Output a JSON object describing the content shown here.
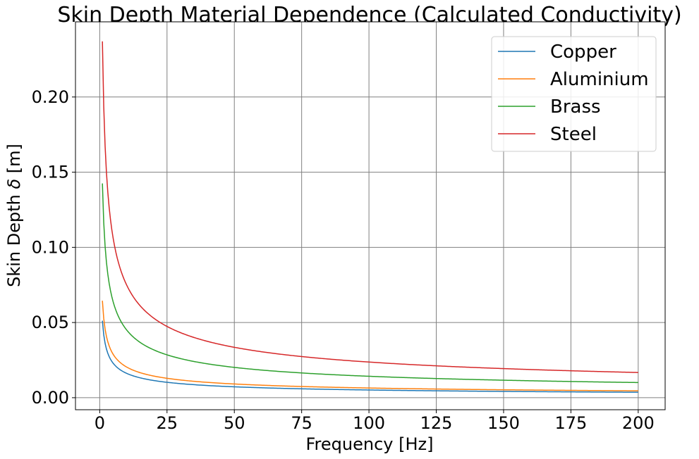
{
  "chart_data": {
    "type": "line",
    "title": "Skin Depth Material Dependence (Calculated Conductivity)",
    "xlabel": "Frequency [Hz]",
    "ylabel_prefix": "Skin Depth ",
    "ylabel_symbol": "δ",
    "ylabel_suffix": " [m]",
    "xlim": [
      -9,
      210
    ],
    "ylim": [
      -0.008,
      0.25
    ],
    "xticks": [
      0,
      25,
      50,
      75,
      100,
      125,
      150,
      175,
      200
    ],
    "xtick_labels": [
      "0",
      "25",
      "50",
      "75",
      "100",
      "125",
      "150",
      "175",
      "200"
    ],
    "yticks": [
      0.0,
      0.05,
      0.1,
      0.15,
      0.2
    ],
    "ytick_labels": [
      "0.00",
      "0.05",
      "0.10",
      "0.15",
      "0.20"
    ],
    "grid": true,
    "legend_position": "top-right",
    "x_range": [
      1,
      200
    ],
    "series": [
      {
        "name": "Copper",
        "color": "#1f77b4",
        "value_at_1hz": 0.0512
      },
      {
        "name": "Aluminium",
        "color": "#ff7f0e",
        "value_at_1hz": 0.0645
      },
      {
        "name": "Brass",
        "color": "#2ca02c",
        "value_at_1hz": 0.1425
      },
      {
        "name": "Steel",
        "color": "#d62728",
        "value_at_1hz": 0.237
      }
    ]
  }
}
